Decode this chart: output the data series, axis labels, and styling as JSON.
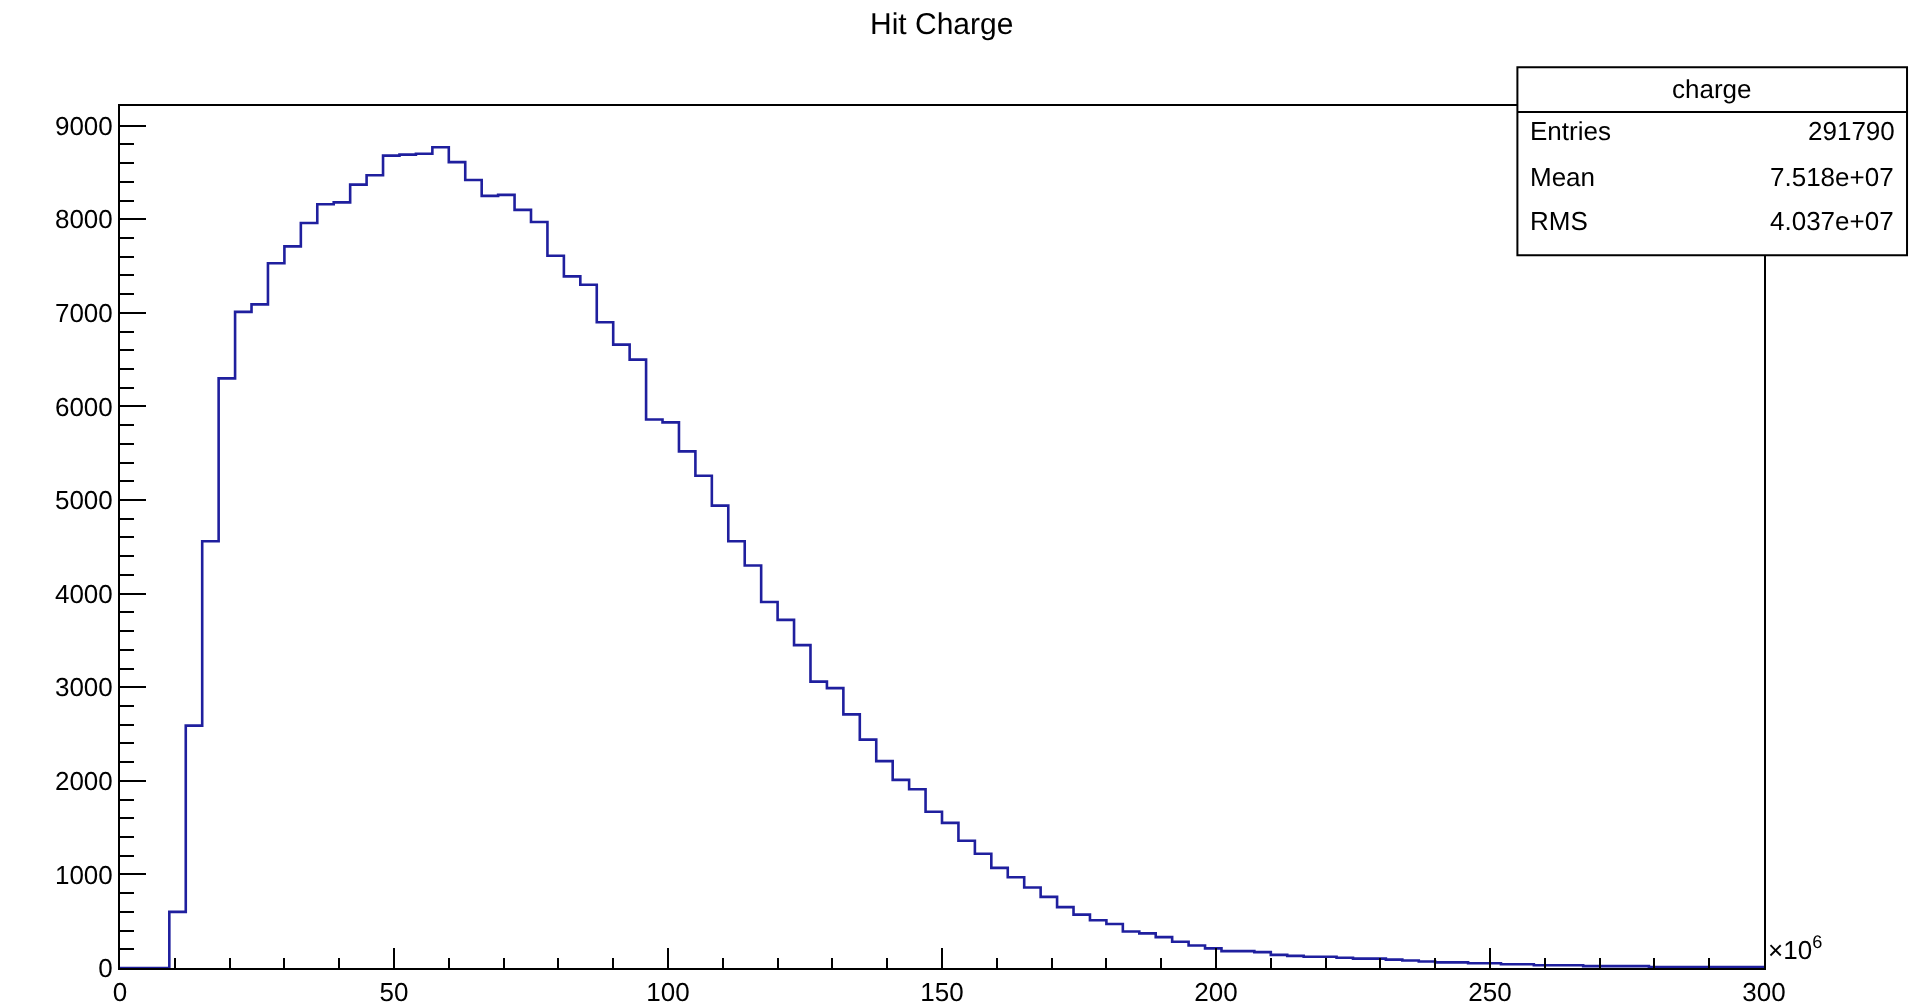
{
  "chart_data": {
    "type": "histogram",
    "title": "Hit Charge",
    "bins": [
      0,
      3,
      6,
      9,
      12,
      15,
      18,
      21,
      24,
      27,
      30,
      33,
      36,
      39,
      42,
      45,
      48,
      51,
      54,
      57,
      60,
      63,
      66,
      69,
      72,
      75,
      78,
      81,
      84,
      87,
      90,
      93,
      96,
      99,
      102,
      105,
      108,
      111,
      114,
      117,
      120,
      123,
      126,
      129,
      132,
      135,
      138,
      141,
      144,
      147,
      150,
      153,
      156,
      159,
      162,
      165,
      168,
      171,
      174,
      177,
      180,
      183,
      186,
      189,
      192,
      195,
      198,
      201,
      204,
      207,
      210,
      213,
      216,
      219,
      222,
      225,
      228,
      231,
      234,
      237,
      240,
      243,
      246,
      249,
      252,
      255,
      258,
      261,
      264,
      267,
      270,
      273,
      276,
      279,
      282,
      285,
      288,
      291,
      294,
      297,
      300
    ],
    "values": [
      0,
      0,
      0,
      600,
      2590,
      4560,
      6300,
      7010,
      7090,
      7530,
      7710,
      7960,
      8160,
      8180,
      8370,
      8470,
      8680,
      8690,
      8700,
      8770,
      8610,
      8420,
      8250,
      8260,
      8100,
      7970,
      7610,
      7390,
      7300,
      6900,
      6660,
      6500,
      5860,
      5830,
      5520,
      5260,
      4940,
      4560,
      4300,
      3910,
      3720,
      3450,
      3060,
      2990,
      2710,
      2440,
      2210,
      2010,
      1910,
      1670,
      1550,
      1360,
      1220,
      1070,
      970,
      860,
      760,
      650,
      570,
      510,
      470,
      390,
      370,
      330,
      280,
      240,
      210,
      180,
      180,
      170,
      140,
      130,
      120,
      120,
      110,
      100,
      100,
      90,
      80,
      70,
      60,
      60,
      50,
      50,
      40,
      40,
      30,
      30,
      30,
      20,
      20,
      20,
      20,
      10,
      10,
      10,
      10,
      10,
      10,
      10
    ],
    "color": "#1f1f9e",
    "xlim": [
      0,
      300
    ],
    "xticks": [
      0,
      50,
      100,
      150,
      200,
      250,
      300
    ],
    "ylim": [
      0,
      9210
    ],
    "yticks": [
      0,
      1000,
      2000,
      3000,
      4000,
      5000,
      6000,
      7000,
      8000,
      9000
    ],
    "grid": false,
    "annotations": [
      "×10$^{6}$",
      "charge",
      "Entries",
      "291790",
      "Mean",
      "7.518e+07",
      "RMS",
      "4.037e+07"
    ]
  }
}
